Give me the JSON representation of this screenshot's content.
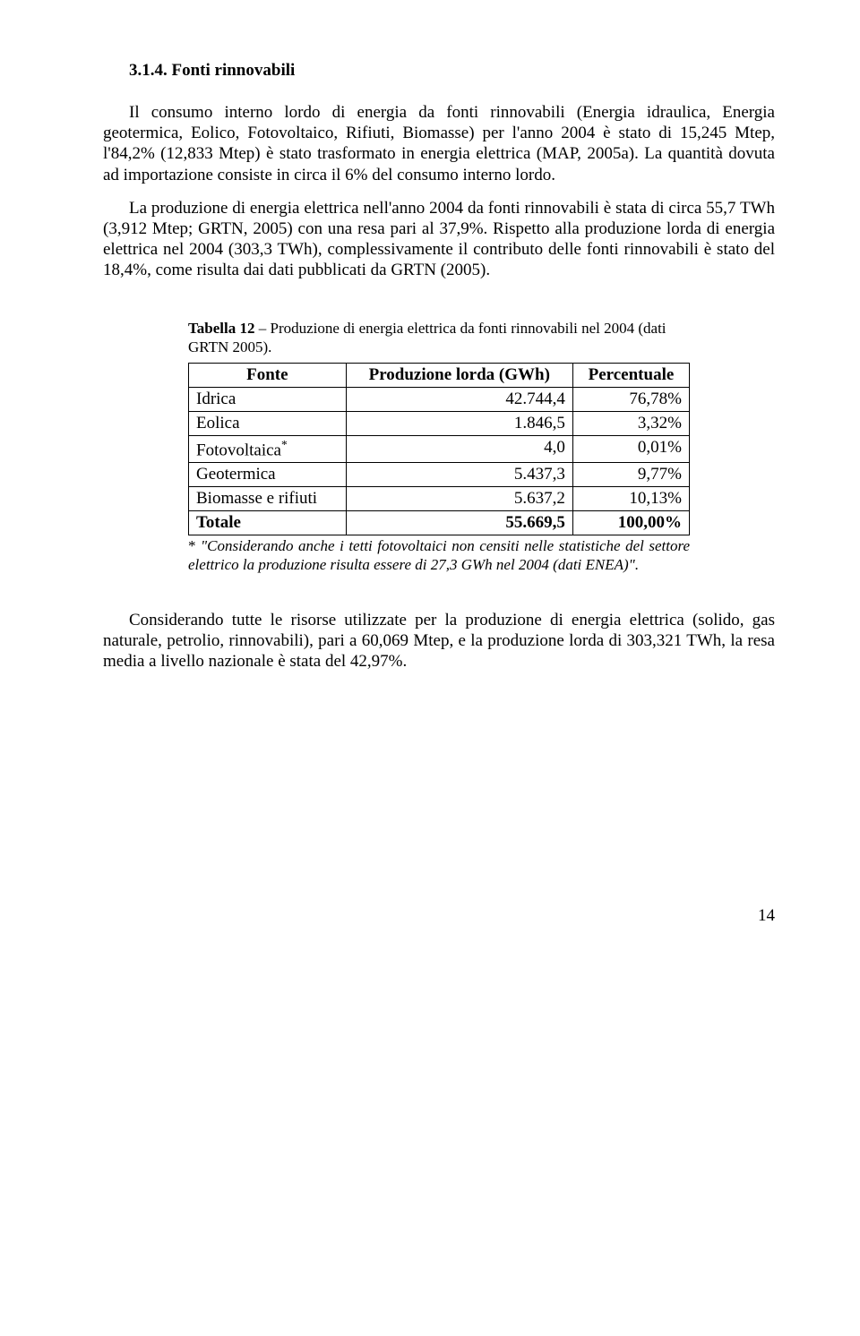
{
  "heading": "3.1.4.  Fonti rinnovabili",
  "para1": "Il consumo interno lordo di energia da fonti rinnovabili (Energia idraulica, Energia geotermica, Eolico, Fotovoltaico, Rifiuti, Biomasse) per l'anno 2004 è stato di 15,245 Mtep, l'84,2% (12,833 Mtep) è stato trasformato in energia elettrica (MAP, 2005a). La quantità dovuta ad importazione consiste in circa il 6% del consumo interno lordo.",
  "para2": "La produzione di energia elettrica nell'anno 2004 da fonti rinnovabili è stata di circa 55,7 TWh (3,912 Mtep; GRTN, 2005) con una resa pari al 37,9%. Rispetto alla produzione lorda di energia elettrica nel 2004 (303,3 TWh), complessivamente il contributo delle fonti rinnovabili è stato del 18,4%, come risulta dai dati pubblicati da GRTN (2005).",
  "table": {
    "caption_bold": "Tabella 12",
    "caption_rest": " – Produzione di energia elettrica da fonti rinnovabili nel 2004 (dati GRTN 2005).",
    "headers": [
      "Fonte",
      "Produzione lorda (GWh)",
      "Percentuale"
    ],
    "rows": [
      {
        "label": "Idrica",
        "value": "42.744,4",
        "pct": "76,78%",
        "sup": false,
        "bold": false
      },
      {
        "label": "Eolica",
        "value": "1.846,5",
        "pct": "3,32%",
        "sup": false,
        "bold": false
      },
      {
        "label": "Fotovoltaica",
        "value": "4,0",
        "pct": "0,01%",
        "sup": true,
        "bold": false
      },
      {
        "label": "Geotermica",
        "value": "5.437,3",
        "pct": "9,77%",
        "sup": false,
        "bold": false
      },
      {
        "label": "Biomasse e rifiuti",
        "value": "5.637,2",
        "pct": "10,13%",
        "sup": false,
        "bold": false
      },
      {
        "label": "Totale",
        "value": "55.669,5",
        "pct": "100,00%",
        "sup": false,
        "bold": true
      }
    ],
    "footnote_star": "* ",
    "footnote_text": "\"Considerando anche i tetti fotovoltaici non censiti nelle statistiche del settore elettrico la produzione risulta essere di 27,3 GWh nel 2004 (dati ENEA)\"."
  },
  "para3": "Considerando tutte le risorse utilizzate per la produzione di energia elettrica (solido, gas naturale, petrolio, rinnovabili), pari a 60,069 Mtep, e la produzione lorda di 303,321 TWh, la resa media a livello nazionale è stata del 42,97%.",
  "pageno": "14",
  "colors": {
    "text": "#000000",
    "background": "#ffffff",
    "border": "#000000"
  }
}
